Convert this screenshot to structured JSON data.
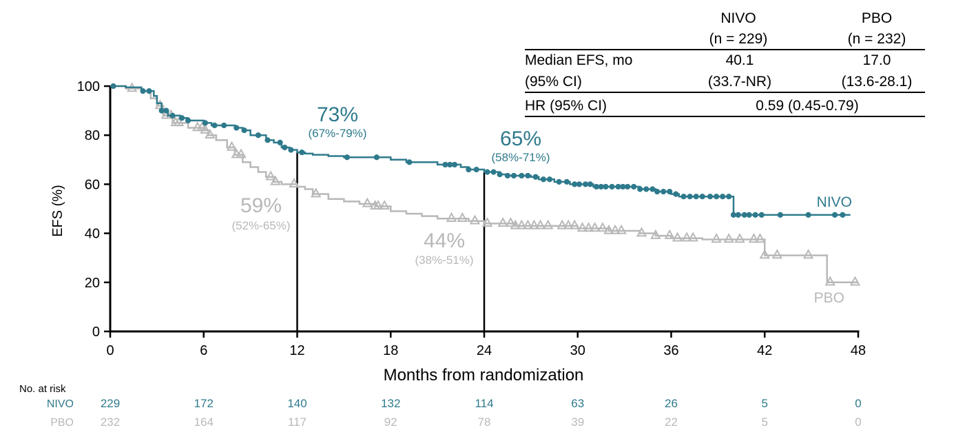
{
  "colors": {
    "nivo": "#2e7a8c",
    "pbo": "#b8b8b8",
    "axis": "#000000"
  },
  "stats_table": {
    "col_headers": [
      {
        "name": "NIVO",
        "n": "(n = 229)"
      },
      {
        "name": "PBO",
        "n": "(n = 232)"
      }
    ],
    "rows": [
      {
        "label1": "Median EFS, mo",
        "label2": "(95% CI)",
        "nivo1": "40.1",
        "nivo2": "(33.7-NR)",
        "pbo1": "17.0",
        "pbo2": "(13.6-28.1)"
      }
    ],
    "hr_label": "HR (95% CI)",
    "hr_value": "0.59 (0.45-0.79)"
  },
  "risk_table": {
    "title": "No. at risk",
    "rows": [
      {
        "label": "NIVO",
        "values": [
          "229",
          "172",
          "140",
          "132",
          "114",
          "63",
          "26",
          "5",
          "0"
        ]
      },
      {
        "label": "PBO",
        "values": [
          "232",
          "164",
          "117",
          "92",
          "78",
          "39",
          "22",
          "5",
          "0"
        ]
      }
    ]
  },
  "chart_data": {
    "type": "line",
    "subtype": "kaplan-meier",
    "xlabel": "Months from randomization",
    "ylabel": "EFS (%)",
    "xlim": [
      0,
      48
    ],
    "ylim": [
      0,
      100
    ],
    "xticks": [
      "0",
      "6",
      "12",
      "18",
      "24",
      "30",
      "36",
      "42",
      "48"
    ],
    "yticks": [
      "0",
      "20",
      "40",
      "60",
      "80",
      "100"
    ],
    "reference_lines_x": [
      12,
      24
    ],
    "series": [
      {
        "name": "NIVO",
        "marker": "circle",
        "steps": [
          [
            0,
            100
          ],
          [
            1,
            99.5
          ],
          [
            2,
            98
          ],
          [
            2.8,
            96
          ],
          [
            3,
            93
          ],
          [
            3.3,
            90
          ],
          [
            3.7,
            88
          ],
          [
            4.5,
            87
          ],
          [
            5,
            86
          ],
          [
            6,
            85
          ],
          [
            6.5,
            84
          ],
          [
            8,
            83
          ],
          [
            8.5,
            82
          ],
          [
            9,
            80
          ],
          [
            10,
            78
          ],
          [
            10.5,
            77
          ],
          [
            11,
            75
          ],
          [
            11.5,
            74
          ],
          [
            12,
            73
          ],
          [
            12.5,
            72.5
          ],
          [
            13,
            72
          ],
          [
            14,
            71.5
          ],
          [
            15,
            71
          ],
          [
            18,
            70
          ],
          [
            19,
            69
          ],
          [
            21,
            68
          ],
          [
            22.5,
            67
          ],
          [
            23,
            66
          ],
          [
            24,
            65
          ],
          [
            25,
            64
          ],
          [
            25.5,
            63.5
          ],
          [
            27,
            63
          ],
          [
            27.5,
            62
          ],
          [
            28.5,
            61
          ],
          [
            29.5,
            60
          ],
          [
            31,
            59
          ],
          [
            34,
            58
          ],
          [
            35,
            57
          ],
          [
            36,
            56
          ],
          [
            36.5,
            55
          ],
          [
            40,
            55
          ],
          [
            40,
            47.5
          ],
          [
            47.5,
            47.5
          ]
        ],
        "censor_x": [
          0.2,
          2.1,
          2.5,
          3.3,
          3.6,
          4.0,
          4.6,
          5.0,
          6.1,
          6.7,
          7.3,
          8.1,
          8.6,
          9.5,
          10.1,
          10.9,
          11.2,
          11.6,
          12.3,
          15.2,
          17.1,
          19.2,
          21.5,
          21.8,
          22.1,
          23.0,
          23.5,
          24.2,
          24.6,
          25.0,
          25.5,
          25.9,
          26.4,
          26.8,
          27.3,
          27.8,
          28.2,
          28.8,
          29.3,
          29.8,
          30.1,
          30.5,
          30.8,
          31.2,
          31.5,
          31.8,
          32.2,
          32.6,
          32.9,
          33.2,
          33.6,
          34.0,
          34.4,
          34.8,
          35.1,
          35.5,
          35.9,
          36.3,
          36.8,
          37.2,
          37.6,
          38.0,
          38.5,
          38.9,
          39.3,
          39.7,
          40.0,
          40.3,
          40.7,
          41.0,
          41.4,
          41.8,
          43.0,
          44.8,
          46.5,
          47.0
        ]
      },
      {
        "name": "PBO",
        "marker": "triangle",
        "steps": [
          [
            0,
            100
          ],
          [
            1,
            99
          ],
          [
            2,
            98
          ],
          [
            2.6,
            95
          ],
          [
            3,
            92
          ],
          [
            3.4,
            88
          ],
          [
            4,
            85
          ],
          [
            5,
            83
          ],
          [
            6,
            82
          ],
          [
            6.3,
            80
          ],
          [
            6.8,
            78
          ],
          [
            7.5,
            75
          ],
          [
            8,
            72
          ],
          [
            8.5,
            69
          ],
          [
            9,
            67
          ],
          [
            9.5,
            65
          ],
          [
            10,
            63
          ],
          [
            10.5,
            61
          ],
          [
            11,
            60
          ],
          [
            12,
            59
          ],
          [
            12.5,
            58
          ],
          [
            13,
            56
          ],
          [
            14,
            54
          ],
          [
            15,
            53
          ],
          [
            16,
            52
          ],
          [
            17,
            51
          ],
          [
            18,
            49
          ],
          [
            19,
            48
          ],
          [
            20,
            47
          ],
          [
            21,
            46
          ],
          [
            23,
            45
          ],
          [
            24,
            44
          ],
          [
            26,
            43
          ],
          [
            28,
            43
          ],
          [
            30,
            42
          ],
          [
            32,
            41
          ],
          [
            34,
            40
          ],
          [
            35,
            39
          ],
          [
            36,
            38
          ],
          [
            38,
            37.5
          ],
          [
            41.5,
            37.5
          ],
          [
            42,
            31
          ],
          [
            45,
            31
          ],
          [
            45,
            31
          ],
          [
            46,
            20
          ],
          [
            48,
            20
          ]
        ],
        "censor_x": [
          1.4,
          3.2,
          3.6,
          3.9,
          4.2,
          4.4,
          5.6,
          5.9,
          6.1,
          6.4,
          7.8,
          8.1,
          8.4,
          10.3,
          10.6,
          11.8,
          13.2,
          16.5,
          17.0,
          17.2,
          17.6,
          21.9,
          22.6,
          23.4,
          24.2,
          25.2,
          25.7,
          26.0,
          26.4,
          26.8,
          27.2,
          27.6,
          28.1,
          29.0,
          29.4,
          29.8,
          30.3,
          30.7,
          31.1,
          31.6,
          32.0,
          32.4,
          32.8,
          34.1,
          35.0,
          35.9,
          36.4,
          37.0,
          37.4,
          38.9,
          39.7,
          40.4,
          41.3,
          41.7,
          42.0,
          42.8,
          44.8,
          46.2,
          47.8
        ]
      }
    ],
    "annotations": [
      {
        "series": "NIVO",
        "x": 12,
        "value": "73%",
        "ci": "(67%-79%)"
      },
      {
        "series": "NIVO",
        "x": 24,
        "value": "65%",
        "ci": "(58%-71%)"
      },
      {
        "series": "PBO",
        "x": 12,
        "value": "59%",
        "ci": "(52%-65%)"
      },
      {
        "series": "PBO",
        "x": 24,
        "value": "44%",
        "ci": "(38%-51%)"
      }
    ]
  }
}
